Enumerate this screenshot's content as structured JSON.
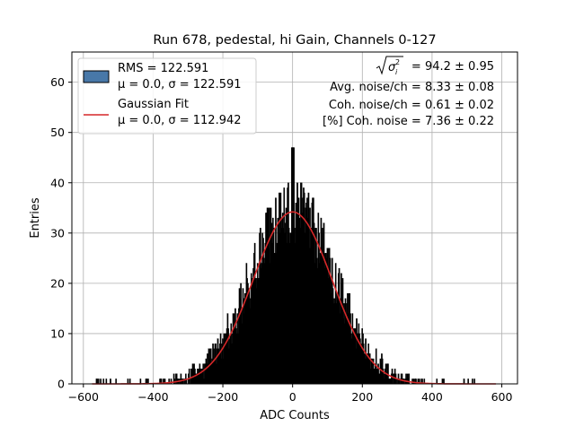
{
  "chart_data": {
    "type": "bar",
    "title": "Run 678, pedestal, hi Gain, Channels 0-127",
    "xlabel": "ADC Counts",
    "ylabel": "Entries",
    "xlim": [
      -633,
      645
    ],
    "ylim": [
      0,
      66
    ],
    "xticks": [
      -600,
      -400,
      -200,
      0,
      200,
      400,
      600
    ],
    "yticks": [
      0,
      10,
      20,
      30,
      40,
      50,
      60
    ],
    "grid": true,
    "legend_placement": "top-left",
    "histogram": {
      "name_line1": "RMS = 122.591",
      "name_line2": "μ = 0.0, σ = 122.591",
      "color": "#4878a8",
      "mu": 0.0,
      "sigma": 122.591,
      "range": [
        -600,
        600
      ],
      "bin_width": 2,
      "peak": 47
    },
    "fit": {
      "name_line1": "Gaussian Fit",
      "name_line2": "μ = 0.0, σ = 112.942",
      "color": "#d62728",
      "mu": 0.0,
      "sigma": 112.942,
      "amplitude": 34.2
    },
    "annotations": {
      "line1_value": "= 94.2 ± 0.95",
      "line2": "Avg. noise/ch = 8.33 ± 0.08",
      "line3": "Coh. noise/ch = 0.61 ± 0.02",
      "line4": "[%] Coh. noise = 7.36 ± 0.22"
    }
  }
}
